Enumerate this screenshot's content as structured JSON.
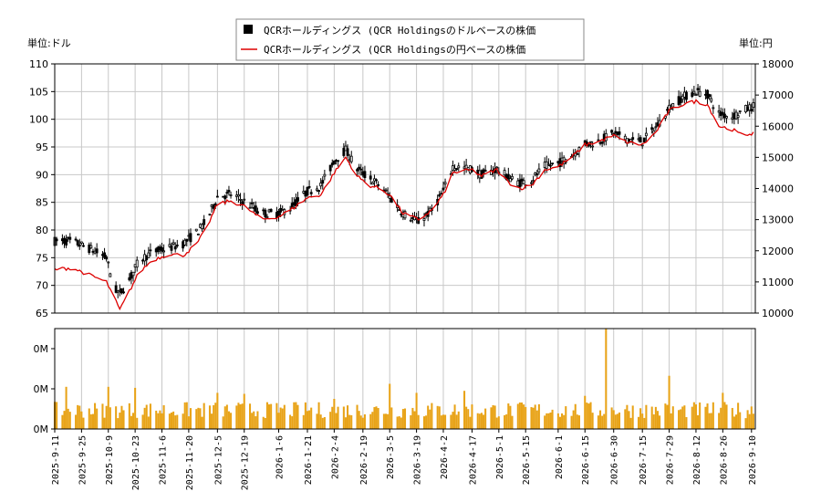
{
  "chart_data": [
    {
      "type": "line",
      "subtype": "candlestick-with-line",
      "left_unit_label": "単位:ドル",
      "right_unit_label": "単位:円",
      "legend": [
        {
          "label": "QCRホールディングス (QCR Holdingsのドルベースの株価",
          "style": "candlestick",
          "color": "#000000"
        },
        {
          "label": "QCRホールディングス (QCR Holdingsの円ベースの株価",
          "style": "line",
          "color": "#dd0000"
        }
      ],
      "legend_position": "top-center",
      "y_left_ticks": [
        "65",
        "70",
        "75",
        "80",
        "85",
        "90",
        "95",
        "100",
        "105",
        "110"
      ],
      "y_left_range": [
        65,
        110
      ],
      "y_right_ticks": [
        "10000",
        "11000",
        "12000",
        "13000",
        "14000",
        "15000",
        "16000",
        "17000",
        "18000"
      ],
      "y_right_range": [
        10000,
        18000
      ],
      "grid": true,
      "x_range": [
        "2025-09-11",
        "2026-09-12"
      ],
      "x_ticks": [
        "2025-9-11",
        "2025-9-25",
        "2025-10-9",
        "2025-10-23",
        "2025-11-6",
        "2025-11-20",
        "2025-12-5",
        "2025-12-19",
        "2026-1-6",
        "2026-1-21",
        "2026-2-4",
        "2026-2-19",
        "2026-3-5",
        "2026-3-19",
        "2026-4-2",
        "2026-4-17",
        "2026-5-1",
        "2026-5-15",
        "2026-6-1",
        "2026-6-15",
        "2026-6-30",
        "2026-7-15",
        "2026-7-29",
        "2026-8-12",
        "2026-8-26",
        "2026-9-10"
      ],
      "usd_price_keypoints": [
        [
          "2025-09-11",
          78.0
        ],
        [
          "2025-09-20",
          78.0
        ],
        [
          "2025-09-30",
          76.5
        ],
        [
          "2025-10-08",
          75.0
        ],
        [
          "2025-10-12",
          69.5
        ],
        [
          "2025-10-15",
          68.5
        ],
        [
          "2025-10-20",
          71.0
        ],
        [
          "2025-10-25",
          74.5
        ],
        [
          "2025-11-01",
          76.0
        ],
        [
          "2025-11-10",
          76.8
        ],
        [
          "2025-11-17",
          77.5
        ],
        [
          "2025-11-24",
          79.5
        ],
        [
          "2025-11-29",
          81.5
        ],
        [
          "2025-12-05",
          86.0
        ],
        [
          "2025-12-12",
          86.5
        ],
        [
          "2025-12-20",
          85.0
        ],
        [
          "2025-12-28",
          83.0
        ],
        [
          "2026-01-06",
          83.0
        ],
        [
          "2026-01-12",
          84.0
        ],
        [
          "2026-01-21",
          87.0
        ],
        [
          "2026-01-28",
          88.0
        ],
        [
          "2026-02-04",
          92.5
        ],
        [
          "2026-02-10",
          94.5
        ],
        [
          "2026-02-16",
          91.0
        ],
        [
          "2026-02-22",
          89.5
        ],
        [
          "2026-02-28",
          88.0
        ],
        [
          "2026-03-05",
          86.0
        ],
        [
          "2026-03-12",
          83.0
        ],
        [
          "2026-03-20",
          81.5
        ],
        [
          "2026-03-27",
          83.5
        ],
        [
          "2026-04-02",
          87.0
        ],
        [
          "2026-04-07",
          91.5
        ],
        [
          "2026-04-17",
          91.0
        ],
        [
          "2026-04-22",
          90.0
        ],
        [
          "2026-04-30",
          91.0
        ],
        [
          "2026-05-06",
          89.5
        ],
        [
          "2026-05-12",
          88.5
        ],
        [
          "2026-05-18",
          89.0
        ],
        [
          "2026-05-25",
          91.5
        ],
        [
          "2026-06-01",
          92.0
        ],
        [
          "2026-06-08",
          93.5
        ],
        [
          "2026-06-15",
          95.5
        ],
        [
          "2026-06-22",
          96.0
        ],
        [
          "2026-06-30",
          97.5
        ],
        [
          "2026-07-06",
          96.5
        ],
        [
          "2026-07-15",
          96.0
        ],
        [
          "2026-07-22",
          98.5
        ],
        [
          "2026-07-29",
          102.0
        ],
        [
          "2026-08-05",
          104.0
        ],
        [
          "2026-08-12",
          105.0
        ],
        [
          "2026-08-18",
          104.5
        ],
        [
          "2026-08-24",
          101.0
        ],
        [
          "2026-08-31",
          100.5
        ],
        [
          "2026-09-05",
          101.5
        ],
        [
          "2026-09-12",
          102.5
        ]
      ],
      "jpy_price_keypoints": [
        [
          "2025-09-11",
          11400
        ],
        [
          "2025-09-20",
          11450
        ],
        [
          "2025-09-30",
          11200
        ],
        [
          "2025-10-08",
          11000
        ],
        [
          "2025-10-12",
          10500
        ],
        [
          "2025-10-15",
          10100
        ],
        [
          "2025-10-20",
          10700
        ],
        [
          "2025-10-25",
          11300
        ],
        [
          "2025-11-01",
          11700
        ],
        [
          "2025-11-10",
          11900
        ],
        [
          "2025-11-17",
          11850
        ],
        [
          "2025-11-24",
          12200
        ],
        [
          "2025-11-29",
          12700
        ],
        [
          "2025-12-05",
          13500
        ],
        [
          "2025-12-12",
          13600
        ],
        [
          "2025-12-20",
          13400
        ],
        [
          "2025-12-28",
          13000
        ],
        [
          "2026-01-06",
          13100
        ],
        [
          "2026-01-12",
          13300
        ],
        [
          "2026-01-21",
          13700
        ],
        [
          "2026-01-28",
          13800
        ],
        [
          "2026-02-04",
          14500
        ],
        [
          "2026-02-10",
          15000
        ],
        [
          "2026-02-16",
          14400
        ],
        [
          "2026-02-22",
          14100
        ],
        [
          "2026-02-28",
          14000
        ],
        [
          "2026-03-05",
          13800
        ],
        [
          "2026-03-12",
          13200
        ],
        [
          "2026-03-20",
          13000
        ],
        [
          "2026-03-27",
          13300
        ],
        [
          "2026-04-02",
          13800
        ],
        [
          "2026-04-07",
          14500
        ],
        [
          "2026-04-17",
          14600
        ],
        [
          "2026-04-22",
          14400
        ],
        [
          "2026-04-30",
          14600
        ],
        [
          "2026-05-06",
          14200
        ],
        [
          "2026-05-12",
          14000
        ],
        [
          "2026-05-18",
          14100
        ],
        [
          "2026-05-25",
          14600
        ],
        [
          "2026-06-01",
          14700
        ],
        [
          "2026-06-08",
          15000
        ],
        [
          "2026-06-15",
          15400
        ],
        [
          "2026-06-22",
          15500
        ],
        [
          "2026-06-30",
          15700
        ],
        [
          "2026-07-06",
          15500
        ],
        [
          "2026-07-15",
          15400
        ],
        [
          "2026-07-22",
          15800
        ],
        [
          "2026-07-29",
          16500
        ],
        [
          "2026-08-05",
          16700
        ],
        [
          "2026-08-12",
          16800
        ],
        [
          "2026-08-18",
          16700
        ],
        [
          "2026-08-24",
          16000
        ],
        [
          "2026-08-31",
          15900
        ],
        [
          "2026-09-05",
          15700
        ],
        [
          "2026-09-12",
          15800
        ]
      ],
      "volume_axis_ticks": [
        "0M",
        "0M",
        "0M"
      ],
      "volume_color": "#e8a317",
      "volume_range": [
        0,
        1
      ],
      "volume_spikes": [
        [
          "2025-09-17",
          0.42
        ],
        [
          "2025-10-09",
          0.42
        ],
        [
          "2025-10-23",
          0.41
        ],
        [
          "2025-12-05",
          0.36
        ],
        [
          "2025-12-19",
          0.35
        ],
        [
          "2026-02-04",
          0.3
        ],
        [
          "2026-03-05",
          0.45
        ],
        [
          "2026-03-19",
          0.36
        ],
        [
          "2026-04-13",
          0.38
        ],
        [
          "2026-06-26",
          1.0
        ],
        [
          "2026-07-29",
          0.53
        ],
        [
          "2026-08-22",
          0.55
        ],
        [
          "2026-08-26",
          0.36
        ],
        [
          "2026-06-15",
          0.33
        ]
      ],
      "volume_baseline": 0.18
    }
  ]
}
